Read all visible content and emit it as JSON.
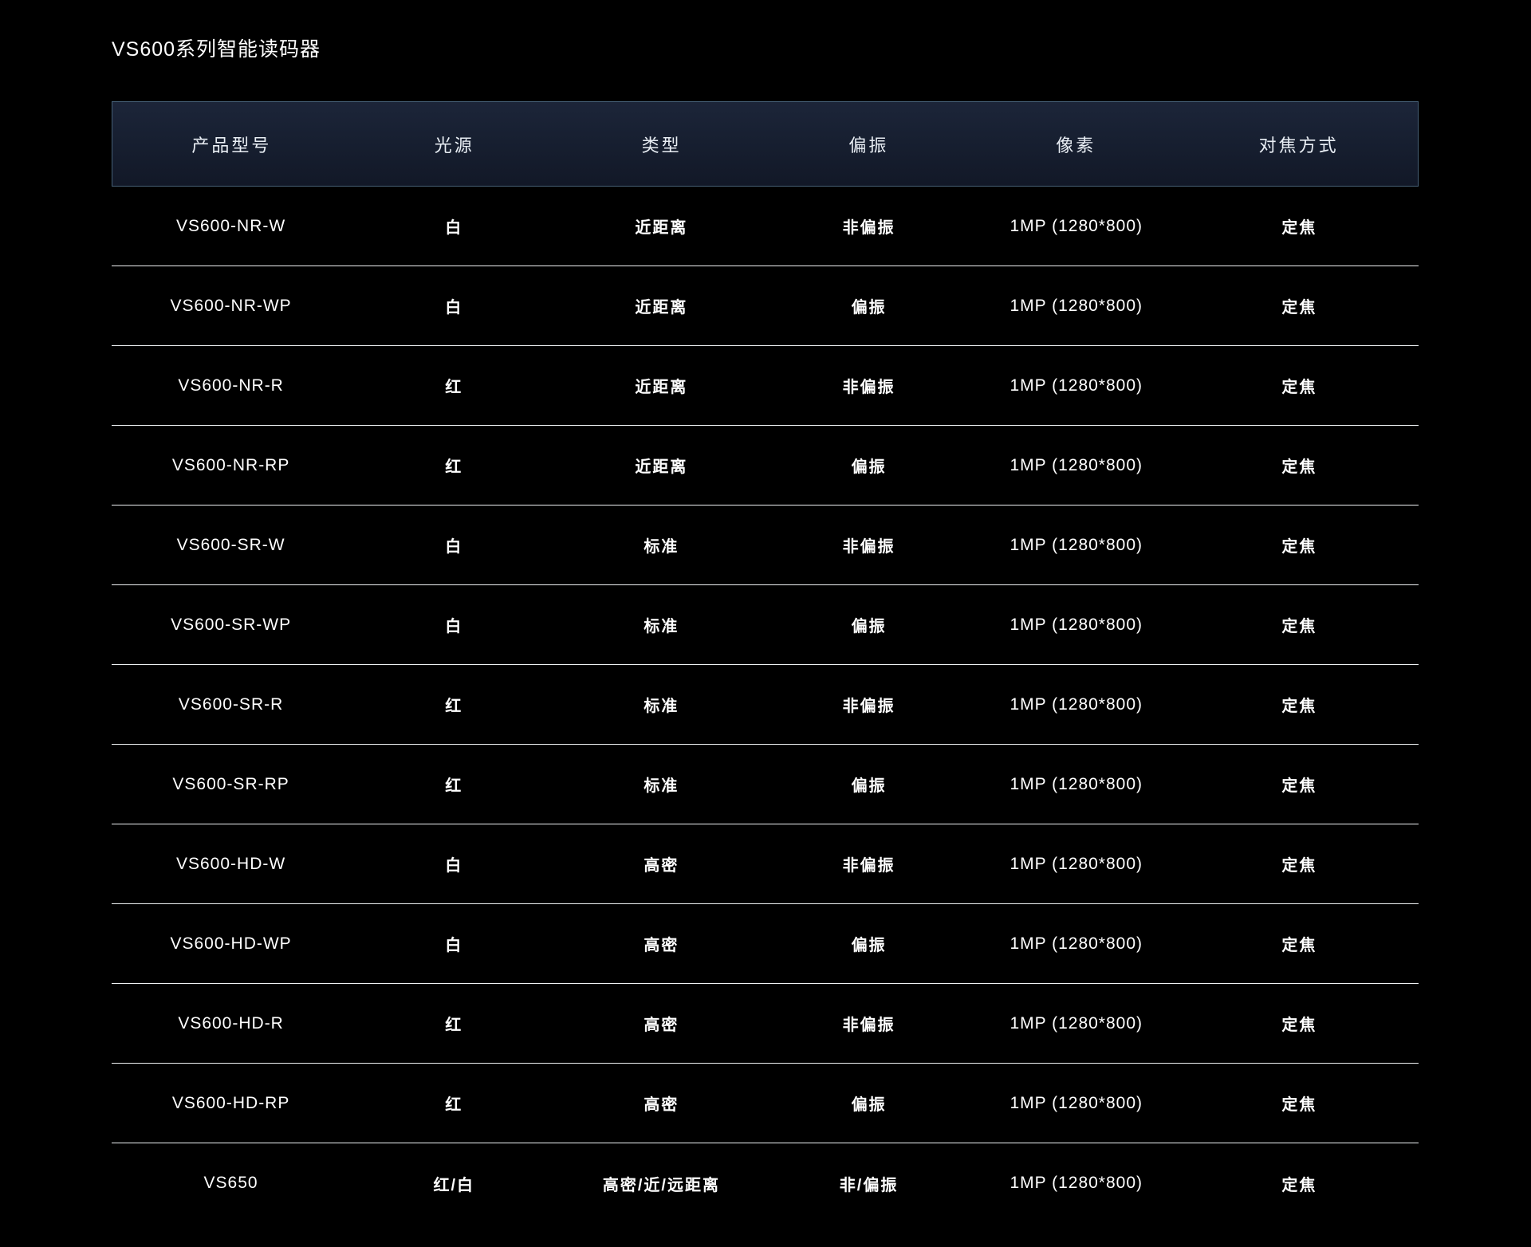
{
  "page": {
    "title": "VS600系列智能读码器"
  },
  "table": {
    "columns": [
      {
        "key": "model",
        "label": "产品型号"
      },
      {
        "key": "light",
        "label": "光源"
      },
      {
        "key": "type",
        "label": "类型"
      },
      {
        "key": "polarization",
        "label": "偏振"
      },
      {
        "key": "pixels",
        "label": "像素"
      },
      {
        "key": "focus",
        "label": "对焦方式"
      }
    ],
    "rows": [
      {
        "model": "VS600-NR-W",
        "light": "白",
        "type": "近距离",
        "polarization": "非偏振",
        "pixels": "1MP (1280*800)",
        "focus": "定焦"
      },
      {
        "model": "VS600-NR-WP",
        "light": "白",
        "type": "近距离",
        "polarization": "偏振",
        "pixels": "1MP (1280*800)",
        "focus": "定焦"
      },
      {
        "model": "VS600-NR-R",
        "light": "红",
        "type": "近距离",
        "polarization": "非偏振",
        "pixels": "1MP (1280*800)",
        "focus": "定焦"
      },
      {
        "model": "VS600-NR-RP",
        "light": "红",
        "type": "近距离",
        "polarization": "偏振",
        "pixels": "1MP (1280*800)",
        "focus": "定焦"
      },
      {
        "model": "VS600-SR-W",
        "light": "白",
        "type": "标准",
        "polarization": "非偏振",
        "pixels": "1MP (1280*800)",
        "focus": "定焦"
      },
      {
        "model": "VS600-SR-WP",
        "light": "白",
        "type": "标准",
        "polarization": "偏振",
        "pixels": "1MP (1280*800)",
        "focus": "定焦"
      },
      {
        "model": "VS600-SR-R",
        "light": "红",
        "type": "标准",
        "polarization": "非偏振",
        "pixels": "1MP (1280*800)",
        "focus": "定焦"
      },
      {
        "model": "VS600-SR-RP",
        "light": "红",
        "type": "标准",
        "polarization": "偏振",
        "pixels": "1MP (1280*800)",
        "focus": "定焦"
      },
      {
        "model": "VS600-HD-W",
        "light": "白",
        "type": "高密",
        "polarization": "非偏振",
        "pixels": "1MP (1280*800)",
        "focus": "定焦"
      },
      {
        "model": "VS600-HD-WP",
        "light": "白",
        "type": "高密",
        "polarization": "偏振",
        "pixels": "1MP (1280*800)",
        "focus": "定焦"
      },
      {
        "model": "VS600-HD-R",
        "light": "红",
        "type": "高密",
        "polarization": "非偏振",
        "pixels": "1MP (1280*800)",
        "focus": "定焦"
      },
      {
        "model": "VS600-HD-RP",
        "light": "红",
        "type": "高密",
        "polarization": "偏振",
        "pixels": "1MP (1280*800)",
        "focus": "定焦"
      },
      {
        "model": "VS650",
        "light": "红/白",
        "type": "高密/近/远距离",
        "polarization": "非/偏振",
        "pixels": "1MP (1280*800)",
        "focus": "定焦"
      }
    ],
    "colors": {
      "background": "#000000",
      "header_gradient_top": "#1c2539",
      "header_gradient_mid": "#161e2f",
      "header_gradient_bottom": "#121827",
      "header_border": "#466077",
      "row_divider": "#eef1f3",
      "text": "#ffffff",
      "header_text": "#e9eef4"
    }
  }
}
